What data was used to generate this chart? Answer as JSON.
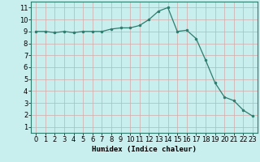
{
  "x": [
    0,
    1,
    2,
    3,
    4,
    5,
    6,
    7,
    8,
    9,
    10,
    11,
    12,
    13,
    14,
    15,
    16,
    17,
    18,
    19,
    20,
    21,
    22,
    23
  ],
  "y": [
    9.0,
    9.0,
    8.9,
    9.0,
    8.9,
    9.0,
    9.0,
    9.0,
    9.2,
    9.3,
    9.3,
    9.5,
    10.0,
    10.7,
    11.0,
    9.0,
    9.1,
    8.4,
    6.6,
    4.7,
    3.5,
    3.2,
    2.4,
    1.9
  ],
  "xlabel": "Humidex (Indice chaleur)",
  "xlim": [
    -0.5,
    23.5
  ],
  "ylim": [
    0.5,
    11.5
  ],
  "yticks": [
    1,
    2,
    3,
    4,
    5,
    6,
    7,
    8,
    9,
    10,
    11
  ],
  "xticks": [
    0,
    1,
    2,
    3,
    4,
    5,
    6,
    7,
    8,
    9,
    10,
    11,
    12,
    13,
    14,
    15,
    16,
    17,
    18,
    19,
    20,
    21,
    22,
    23
  ],
  "line_color": "#2e7d6e",
  "marker_color": "#2e7d6e",
  "bg_color": "#c8eeee",
  "grid_color": "#d4aaaa",
  "label_fontsize": 6.5,
  "tick_fontsize": 6
}
